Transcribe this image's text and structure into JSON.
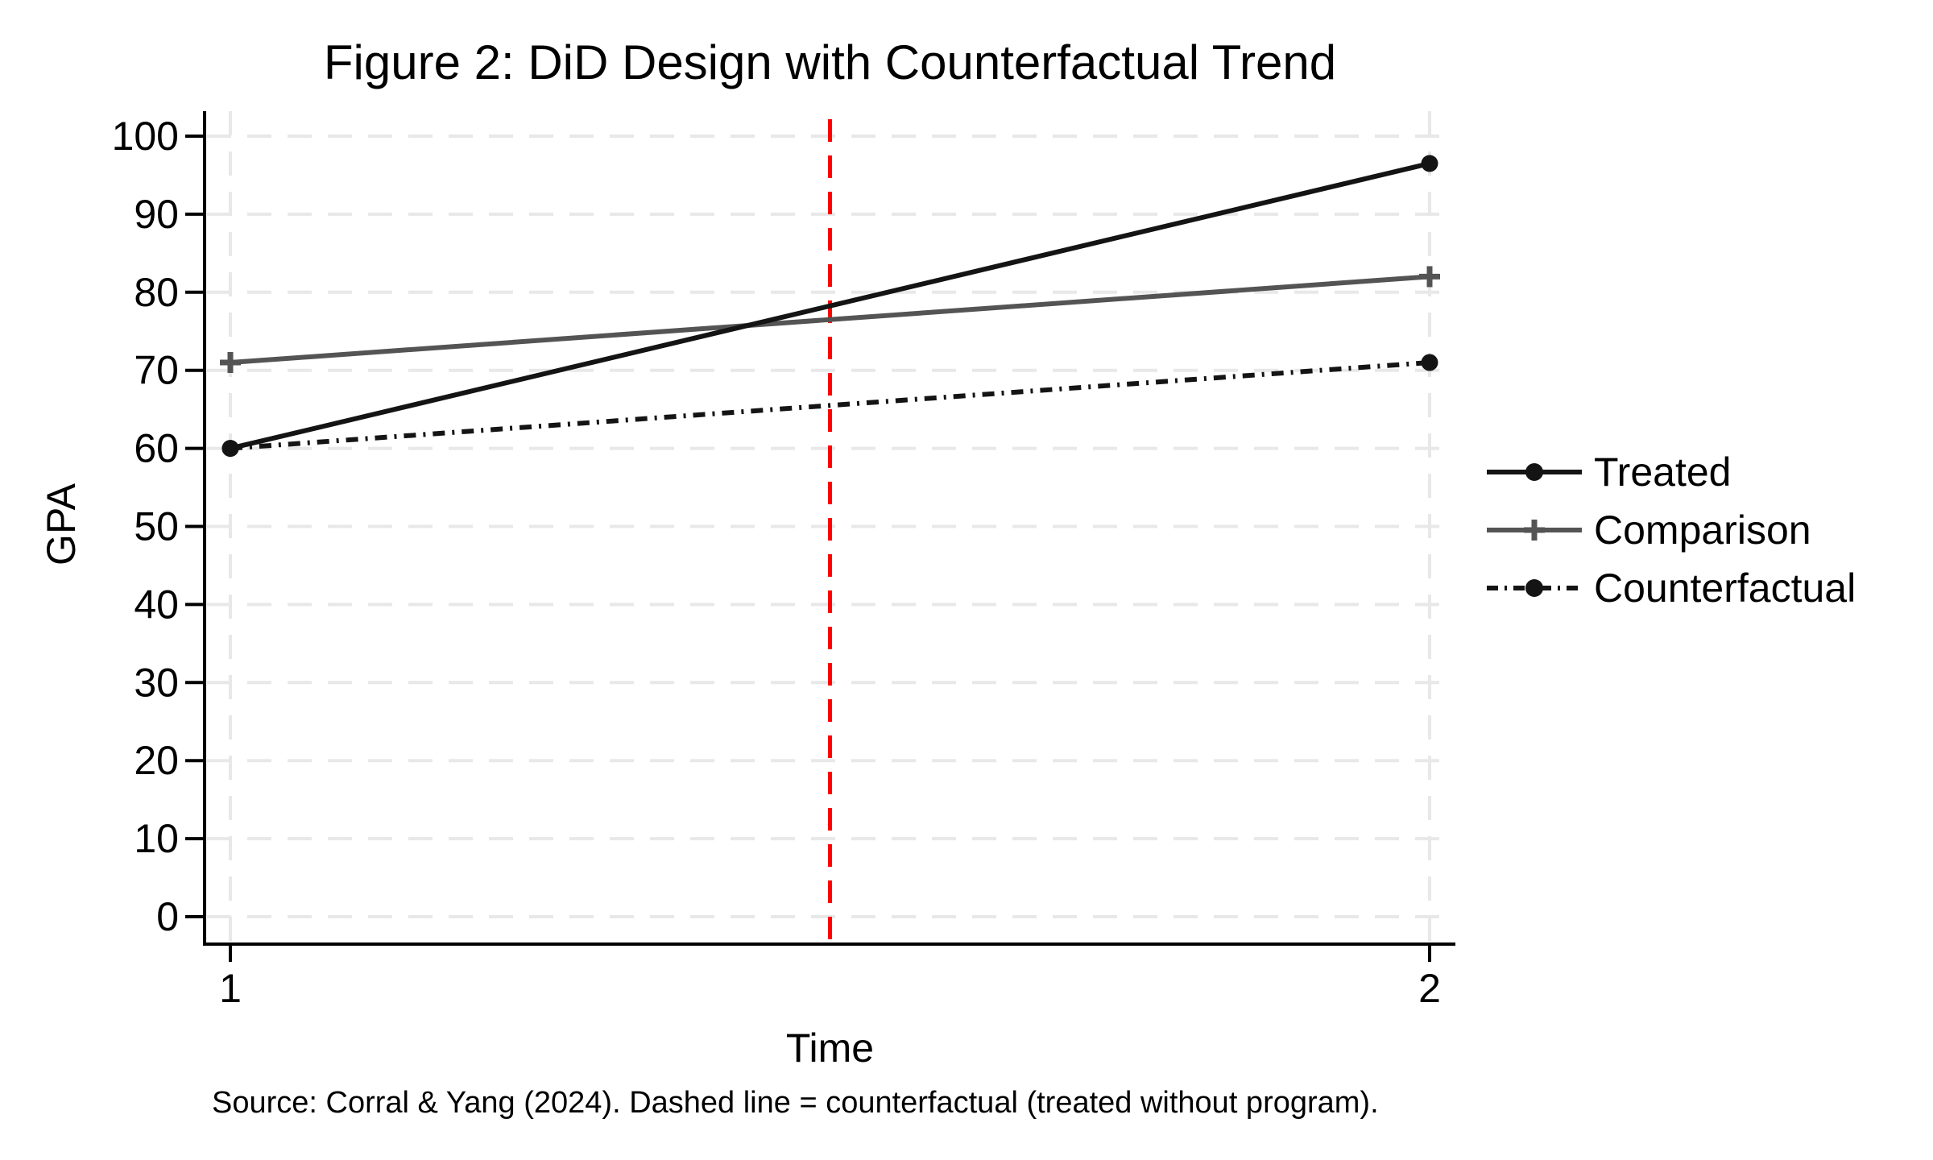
{
  "figure": {
    "title": "Figure 2: DiD Design with Counterfactual Trend",
    "source_note": "Source: Corral & Yang (2024). Dashed line = counterfactual (treated without program).",
    "background_color": "#ffffff"
  },
  "chart_data": {
    "type": "line",
    "title": "Figure 2: DiD Design with Counterfactual Trend",
    "xlabel": "Time",
    "ylabel": "GPA",
    "x": [
      1,
      2
    ],
    "x_ticks": [
      1,
      2
    ],
    "y_ticks": [
      0,
      10,
      20,
      30,
      40,
      50,
      60,
      70,
      80,
      90,
      100
    ],
    "ylim": [
      0,
      100
    ],
    "xlim": [
      1,
      2
    ],
    "grid": true,
    "gridline_color": "#e8e8e8",
    "axis_color": "#000000",
    "legend_position": "right-outside",
    "series": [
      {
        "name": "Treated",
        "values": [
          60,
          96.5
        ],
        "color": "#141414",
        "line_style": "solid",
        "marker": "circle"
      },
      {
        "name": "Comparison",
        "values": [
          71,
          82
        ],
        "color": "#545454",
        "line_style": "solid",
        "marker": "plus"
      },
      {
        "name": "Counterfactual",
        "values": [
          60,
          71
        ],
        "color": "#141414",
        "line_style": "dash-dot",
        "marker": "circle"
      }
    ],
    "vline": {
      "x": 1.5,
      "color": "#ff0000",
      "style": "dashed"
    }
  }
}
